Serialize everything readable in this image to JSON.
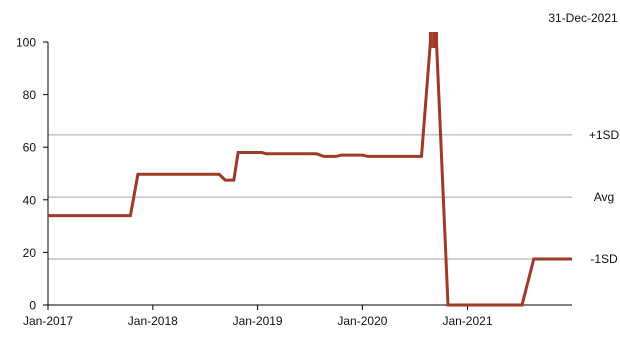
{
  "chart_data": {
    "type": "line",
    "date_label": "31-Dec-2021",
    "x_tick_labels": [
      "Jan-2017",
      "Jan-2018",
      "Jan-2019",
      "Jan-2020",
      "Jan-2021"
    ],
    "x_ticks": [
      "2017-01-01",
      "2018-01-01",
      "2019-01-01",
      "2020-01-01",
      "2021-01-01"
    ],
    "xlim": [
      "2017-01-01",
      "2021-12-31"
    ],
    "ylim": [
      0,
      100
    ],
    "y_ticks": [
      0,
      20,
      40,
      60,
      80,
      100
    ],
    "reference_lines": [
      {
        "label": "+1SD",
        "value": 64.7
      },
      {
        "label": "Avg",
        "value": 41
      },
      {
        "label": "-1SD",
        "value": 17.5
      }
    ],
    "series": [
      {
        "color": "#9e3a26",
        "points": [
          [
            "2017-01-01",
            34
          ],
          [
            "2017-10-15",
            34
          ],
          [
            "2017-11-10",
            49.7
          ],
          [
            "2018-08-20",
            49.7
          ],
          [
            "2018-09-10",
            47.5
          ],
          [
            "2018-10-10",
            47.5
          ],
          [
            "2018-10-25",
            58
          ],
          [
            "2019-01-15",
            58
          ],
          [
            "2019-02-01",
            57.5
          ],
          [
            "2019-07-25",
            57.5
          ],
          [
            "2019-08-20",
            56.5
          ],
          [
            "2019-10-01",
            56.5
          ],
          [
            "2019-10-20",
            57
          ],
          [
            "2020-01-01",
            57
          ],
          [
            "2020-01-20",
            56.5
          ],
          [
            "2020-07-25",
            56.5
          ],
          [
            "2020-08-25",
            100
          ],
          [
            "2020-09-05",
            100
          ],
          [
            "2020-09-15",
            100
          ],
          [
            "2020-10-25",
            0
          ],
          [
            "2021-07-10",
            0
          ],
          [
            "2021-08-20",
            17.5
          ],
          [
            "2021-12-31",
            17.5
          ]
        ]
      }
    ],
    "grid": false
  }
}
